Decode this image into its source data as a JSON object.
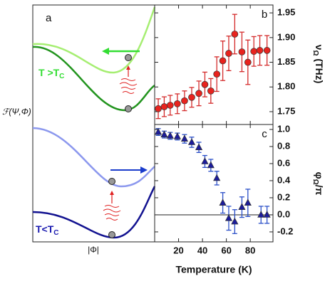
{
  "panel_a": {
    "label": "a",
    "y_label": "ℱ(Ψ,Φ)",
    "x_label": "|Φ|",
    "high_T": {
      "text": "T >T",
      "sub": "C"
    },
    "low_T": {
      "text": "T<T",
      "sub": "C"
    }
  },
  "chart_data": [
    {
      "type": "scatter",
      "label": "b",
      "y_label_parts": [
        "ν",
        "Ω",
        " (THz)"
      ],
      "x": [
        3,
        8,
        13,
        19,
        25,
        31,
        37,
        42,
        47,
        52,
        57,
        62,
        67,
        73,
        78,
        83,
        88,
        94
      ],
      "xlim": [
        0,
        99
      ],
      "xticks": [
        20,
        40,
        60,
        80
      ],
      "ylim": [
        1.724,
        1.966
      ],
      "yticks": [
        1.75,
        1.8,
        1.85,
        1.9,
        1.95
      ],
      "ytick_labels": [
        "1.75",
        "1.80",
        "1.85",
        "1.90",
        "1.95"
      ],
      "series": [
        {
          "marker": "circle",
          "color": "#e8231e",
          "error_color": "#d42a2a",
          "values": [
            1.756,
            1.76,
            1.763,
            1.766,
            1.772,
            1.779,
            1.787,
            1.805,
            1.792,
            1.826,
            1.853,
            1.868,
            1.907,
            1.871,
            1.85,
            1.872,
            1.874,
            1.874
          ],
          "errors": [
            0.02,
            0.02,
            0.02,
            0.02,
            0.02,
            0.02,
            0.025,
            0.025,
            0.025,
            0.035,
            0.04,
            0.035,
            0.04,
            0.04,
            0.045,
            0.03,
            0.03,
            0.03
          ]
        }
      ]
    },
    {
      "type": "scatter",
      "label": "c",
      "y_label_parts": [
        "φ",
        "Ω",
        "/π"
      ],
      "x_label": "Temperature (K)",
      "x": [
        3,
        8,
        13,
        19,
        25,
        31,
        37,
        42,
        47,
        52,
        57,
        62,
        67,
        73,
        78,
        89,
        94
      ],
      "xlim": [
        0,
        99
      ],
      "xticks": [
        20,
        40,
        60,
        80
      ],
      "ylim": [
        -0.317,
        1.058
      ],
      "yticks": [
        -0.2,
        0,
        0.2,
        0.4,
        0.6,
        0.8,
        1
      ],
      "ytick_labels": [
        "-0.2",
        "0.0",
        "0.2",
        "0.4",
        "0.6",
        "0.8",
        "1.0"
      ],
      "reference_line": 0,
      "series": [
        {
          "marker": "triangle",
          "color": "#1c1c9c",
          "error_color": "#2a4fc8",
          "values": [
            0.97,
            0.94,
            0.925,
            0.917,
            0.89,
            0.85,
            0.79,
            0.625,
            0.58,
            0.43,
            0.14,
            -0.04,
            -0.08,
            0.09,
            0.14,
            0.0,
            0.0
          ],
          "errors": [
            0.04,
            0.04,
            0.04,
            0.04,
            0.05,
            0.06,
            0.06,
            0.07,
            0.07,
            0.08,
            0.12,
            0.14,
            0.14,
            0.12,
            0.16,
            0.1,
            0.1
          ]
        }
      ]
    }
  ]
}
